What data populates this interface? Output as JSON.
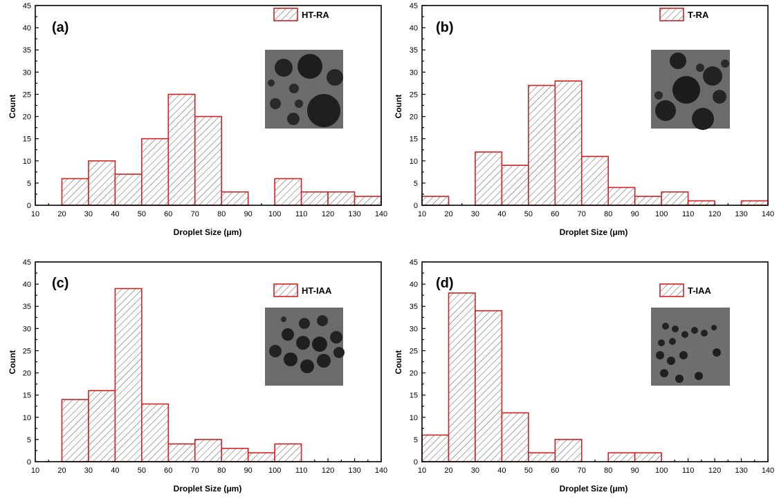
{
  "colors": {
    "bar_edge": "#d42020",
    "hatch": "#555555",
    "axis": "#000000",
    "inset_bg": "#6b6b6b"
  },
  "chart_data": [
    {
      "type": "bar",
      "panel": "(a)",
      "legend": "HT-RA",
      "xlabel": "Droplet Size (μm)",
      "ylabel": "Count",
      "xlim": [
        10,
        140
      ],
      "ylim": [
        0,
        45
      ],
      "xticks": [
        10,
        20,
        30,
        40,
        50,
        60,
        70,
        80,
        90,
        100,
        110,
        120,
        130,
        140
      ],
      "yticks": [
        0,
        5,
        10,
        15,
        20,
        25,
        30,
        35,
        40,
        45
      ],
      "bin_width": 10,
      "bins": [
        {
          "start": 20,
          "value": 6
        },
        {
          "start": 30,
          "value": 10
        },
        {
          "start": 40,
          "value": 7
        },
        {
          "start": 50,
          "value": 15
        },
        {
          "start": 60,
          "value": 25
        },
        {
          "start": 70,
          "value": 20
        },
        {
          "start": 80,
          "value": 3
        },
        {
          "start": 100,
          "value": 6
        },
        {
          "start": 110,
          "value": 3
        },
        {
          "start": 120,
          "value": 3
        },
        {
          "start": 130,
          "value": 2
        }
      ]
    },
    {
      "type": "bar",
      "panel": "(b)",
      "legend": "T-RA",
      "xlabel": "Droplet Size (μm)",
      "ylabel": "Count",
      "xlim": [
        10,
        140
      ],
      "ylim": [
        0,
        45
      ],
      "xticks": [
        10,
        20,
        30,
        40,
        50,
        60,
        70,
        80,
        90,
        100,
        110,
        120,
        130,
        140
      ],
      "yticks": [
        0,
        5,
        10,
        15,
        20,
        25,
        30,
        35,
        40,
        45
      ],
      "bin_width": 10,
      "bins": [
        {
          "start": 10,
          "value": 2
        },
        {
          "start": 30,
          "value": 12
        },
        {
          "start": 40,
          "value": 9
        },
        {
          "start": 50,
          "value": 27
        },
        {
          "start": 60,
          "value": 28
        },
        {
          "start": 70,
          "value": 11
        },
        {
          "start": 80,
          "value": 4
        },
        {
          "start": 90,
          "value": 2
        },
        {
          "start": 100,
          "value": 3
        },
        {
          "start": 110,
          "value": 1
        },
        {
          "start": 130,
          "value": 1
        }
      ]
    },
    {
      "type": "bar",
      "panel": "(c)",
      "legend": "HT-IAA",
      "xlabel": "Droplet Size (μm)",
      "ylabel": "Count",
      "xlim": [
        10,
        140
      ],
      "ylim": [
        0,
        45
      ],
      "xticks": [
        10,
        20,
        30,
        40,
        50,
        60,
        70,
        80,
        90,
        100,
        110,
        120,
        130,
        140
      ],
      "yticks": [
        0,
        5,
        10,
        15,
        20,
        25,
        30,
        35,
        40,
        45
      ],
      "bin_width": 10,
      "bins": [
        {
          "start": 20,
          "value": 14
        },
        {
          "start": 30,
          "value": 16
        },
        {
          "start": 40,
          "value": 39
        },
        {
          "start": 50,
          "value": 13
        },
        {
          "start": 60,
          "value": 4
        },
        {
          "start": 70,
          "value": 5
        },
        {
          "start": 80,
          "value": 3
        },
        {
          "start": 90,
          "value": 2
        },
        {
          "start": 100,
          "value": 4
        }
      ]
    },
    {
      "type": "bar",
      "panel": "(d)",
      "legend": "T-IAA",
      "xlabel": "Droplet Size (μm)",
      "ylabel": "Count",
      "xlim": [
        10,
        140
      ],
      "ylim": [
        0,
        45
      ],
      "xticks": [
        10,
        20,
        30,
        40,
        50,
        60,
        70,
        80,
        90,
        100,
        110,
        120,
        130,
        140
      ],
      "yticks": [
        0,
        5,
        10,
        15,
        20,
        25,
        30,
        35,
        40,
        45
      ],
      "bin_width": 10,
      "bins": [
        {
          "start": 10,
          "value": 6
        },
        {
          "start": 20,
          "value": 38
        },
        {
          "start": 30,
          "value": 34
        },
        {
          "start": 40,
          "value": 11
        },
        {
          "start": 50,
          "value": 2
        },
        {
          "start": 60,
          "value": 5
        },
        {
          "start": 80,
          "value": 2
        },
        {
          "start": 90,
          "value": 2
        }
      ]
    }
  ]
}
